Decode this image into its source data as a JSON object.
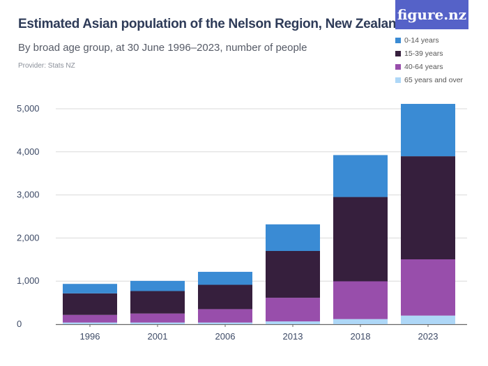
{
  "title": "Estimated Asian population of the Nelson Region, New Zealand",
  "subtitle": "By broad age group, at 30 June 1996–2023, number of people",
  "provider": "Provider: Stats NZ",
  "logo": "figure.nz",
  "chart_data": {
    "type": "bar",
    "stacked": true,
    "categories": [
      "1996",
      "2001",
      "2006",
      "2013",
      "2018",
      "2023"
    ],
    "series": [
      {
        "name": "65 years and over",
        "color": "#aed7f7",
        "values": [
          38,
          38,
          38,
          65,
          118,
          199
        ]
      },
      {
        "name": "40-64 years",
        "color": "#984eab",
        "values": [
          177,
          209,
          311,
          548,
          877,
          1306
        ]
      },
      {
        "name": "15-39 years",
        "color": "#361f3d",
        "values": [
          500,
          522,
          565,
          1086,
          1957,
          2393
        ]
      },
      {
        "name": "0-14 years",
        "color": "#3a8bd4",
        "values": [
          220,
          236,
          301,
          618,
          973,
          1215
        ]
      }
    ],
    "legend_order": [
      "0-14 years",
      "15-39 years",
      "40-64 years",
      "65 years and over"
    ],
    "yticks": [
      "0",
      "1,000",
      "2,000",
      "3,000",
      "4,000",
      "5,000"
    ],
    "ylim": [
      0,
      5000
    ],
    "grid": true,
    "legend": "top-right"
  }
}
